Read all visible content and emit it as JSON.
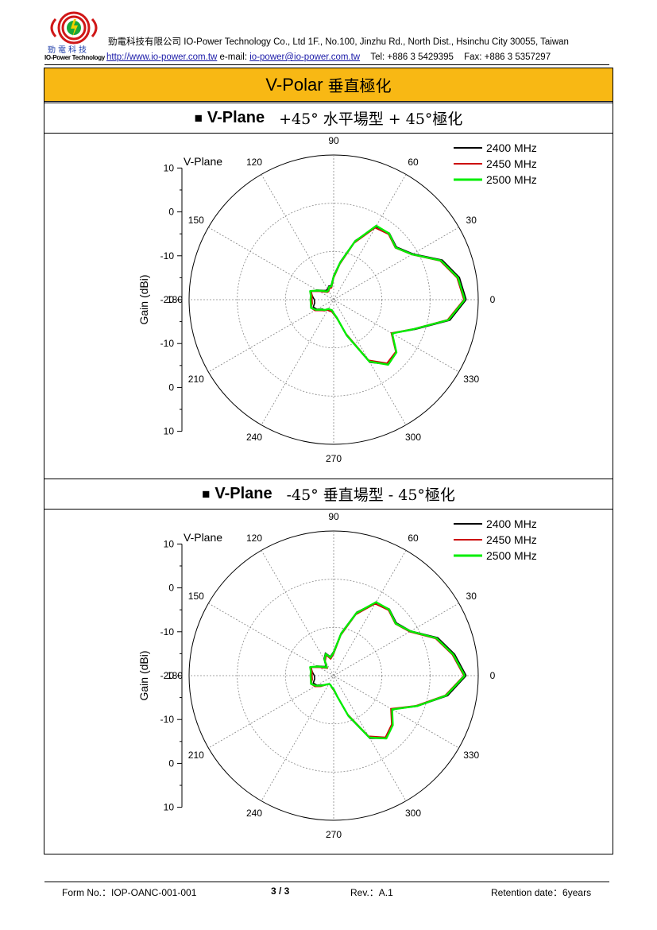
{
  "header": {
    "company": "勁電科技有限公司 IO-Power Technology Co., Ltd 1F., No.100, Jinzhu Rd., North Dist., Hsinchu City 30055, Taiwan",
    "website": "http://www.io-power.com.tw",
    "email_label": "e-mail:",
    "email": "io-power@io-power.com.tw",
    "tel": "Tel: +886 3 5429395",
    "fax": "Fax: +886 3 5357297",
    "logo_cn": "勁電科技",
    "logo_en": "IO-Power Technology"
  },
  "title": {
    "en": "V-Polar",
    "cn": "垂直極化"
  },
  "sections": [
    {
      "square": "■",
      "plane": "V-Plane",
      "desc": "+45°  水平場型 + 45°極化"
    },
    {
      "square": "■",
      "plane": "V-Plane",
      "desc": "-45°  垂直場型 - 45°極化"
    }
  ],
  "colors": {
    "2400 MHz": "#000000",
    "2450 MHz": "#cc0000",
    "2500 MHz": "#00ee00",
    "header_band": "#f8b814"
  },
  "chart_data": [
    {
      "type": "polar",
      "title": "V-Plane",
      "ylabel": "Gain (dBi)",
      "radial_range": [
        -20,
        10
      ],
      "radial_ticks": [
        "10",
        "0",
        "-10",
        "-20",
        "-10",
        "0",
        "10"
      ],
      "angle_ticks": [
        "0",
        "30",
        "60",
        "90",
        "120",
        "150",
        "180",
        "210",
        "240",
        "270",
        "300",
        "330"
      ],
      "legend_position": "top-right",
      "angles_deg": [
        0,
        10,
        20,
        30,
        40,
        50,
        60,
        70,
        80,
        90,
        100,
        110,
        120,
        130,
        140,
        150,
        160,
        170,
        180,
        190,
        200,
        210,
        220,
        230,
        240,
        250,
        260,
        270,
        280,
        290,
        300,
        310,
        320,
        330,
        340,
        350,
        360
      ],
      "series": [
        {
          "name": "2400 MHz",
          "values": [
            7.5,
            6.5,
            4,
            -1,
            -3,
            -2,
            -2.5,
            -7,
            -12,
            -15,
            -17,
            -17,
            -17.5,
            -17.5,
            -17,
            -16,
            -15,
            -15.5,
            -16,
            -16,
            -15.5,
            -16,
            -17,
            -17,
            -17.5,
            -17.5,
            -17.5,
            -17,
            -16,
            -12,
            -5,
            -2.5,
            -3,
            -6,
            -2,
            4.5,
            7.5
          ]
        },
        {
          "name": "2450 MHz",
          "values": [
            7,
            6,
            3.5,
            -1.3,
            -3.3,
            -2.3,
            -2.8,
            -7.5,
            -12.5,
            -15.5,
            -17.5,
            -17.5,
            -18,
            -18,
            -17.5,
            -16.5,
            -15,
            -15.5,
            -15.5,
            -15.5,
            -15,
            -15.5,
            -16.5,
            -17,
            -17.5,
            -17.5,
            -17.5,
            -17,
            -16,
            -12.5,
            -5.5,
            -2.8,
            -3.2,
            -6.2,
            -2.3,
            4,
            7
          ]
        },
        {
          "name": "2500 MHz",
          "values": [
            7.2,
            6.2,
            3.7,
            -1.2,
            -3.2,
            -2.1,
            -2.3,
            -7.2,
            -12.2,
            -15.2,
            -17.2,
            -17.2,
            -17.8,
            -17.8,
            -17.2,
            -16.2,
            -14.8,
            -15.2,
            -15.2,
            -15.2,
            -15,
            -15.8,
            -16.8,
            -17.2,
            -17.8,
            -17.8,
            -17.8,
            -17.2,
            -16.2,
            -12.2,
            -5.2,
            -2.4,
            -3,
            -6,
            -2.2,
            4.2,
            7.2
          ]
        }
      ]
    },
    {
      "type": "polar",
      "title": "V-Plane",
      "ylabel": "Gain (dBi)",
      "radial_range": [
        -20,
        10
      ],
      "radial_ticks": [
        "10",
        "0",
        "-10",
        "-20",
        "-10",
        "0",
        "10"
      ],
      "angle_ticks": [
        "0",
        "30",
        "60",
        "90",
        "120",
        "150",
        "180",
        "210",
        "240",
        "270",
        "300",
        "330"
      ],
      "legend_position": "top-right",
      "angles_deg": [
        0,
        10,
        20,
        30,
        40,
        50,
        60,
        70,
        80,
        90,
        100,
        110,
        120,
        130,
        140,
        150,
        160,
        170,
        180,
        190,
        200,
        210,
        220,
        230,
        240,
        250,
        260,
        270,
        280,
        290,
        300,
        310,
        320,
        330,
        340,
        350,
        360
      ],
      "series": [
        {
          "name": "2400 MHz",
          "values": [
            7.5,
            5.5,
            3,
            -1.5,
            -3,
            -2,
            -2.5,
            -6,
            -11,
            -15,
            -16,
            -15,
            -16,
            -17.5,
            -17,
            -16,
            -15,
            -15.5,
            -16,
            -16,
            -15.5,
            -16,
            -17,
            -17.5,
            -18,
            -18,
            -17.5,
            -17,
            -15.5,
            -11,
            -5,
            -3,
            -4,
            -6,
            -1.5,
            4,
            7.5
          ]
        },
        {
          "name": "2450 MHz",
          "values": [
            7,
            5,
            2.5,
            -1.8,
            -3.3,
            -2.3,
            -2.8,
            -6.5,
            -11.5,
            -15.5,
            -16.5,
            -15.5,
            -16.5,
            -18,
            -17.5,
            -16.5,
            -15,
            -15.5,
            -15.5,
            -15.5,
            -15,
            -15.5,
            -16.5,
            -17.5,
            -18,
            -18,
            -17.5,
            -17,
            -15.5,
            -11.5,
            -5.5,
            -3.3,
            -4.3,
            -6.3,
            -1.8,
            3.5,
            7
          ]
        },
        {
          "name": "2500 MHz",
          "values": [
            7.2,
            5.2,
            2.7,
            -1.6,
            -3.2,
            -2.1,
            -2.4,
            -6.2,
            -11.2,
            -15.2,
            -16.2,
            -15.2,
            -16.2,
            -17.8,
            -17.2,
            -16.2,
            -14.8,
            -15.2,
            -15.2,
            -15.2,
            -15,
            -15.8,
            -16.8,
            -17.6,
            -18,
            -18,
            -17.6,
            -17.2,
            -15.6,
            -11.2,
            -5.2,
            -3,
            -4,
            -6,
            -1.6,
            3.7,
            7.2
          ]
        }
      ]
    }
  ],
  "footer": {
    "form_no": "Form No.：IOP-OANC-001-001",
    "page": "3 / 3",
    "rev": "Rev.：A.1",
    "retention": "Retention date：6years"
  }
}
